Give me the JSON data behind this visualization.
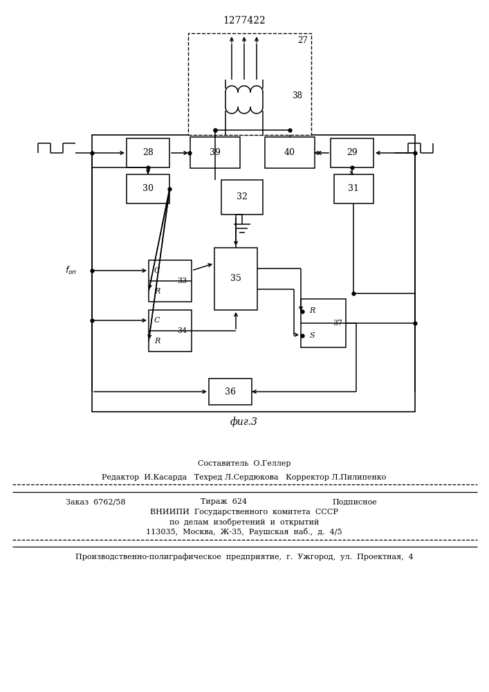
{
  "title": "1277422",
  "fig_label": "фиг.3",
  "bg_color": "#ffffff",
  "footer_lines": [
    "Составитель  О.Геллер",
    "Редактор  И.Касарда   Техред Л.Сердюкова   Корректор Л.Пилипенко",
    "Заказ  6762/58      Тираж  624         Подписное",
    "ВНИИПИ  Государственного  комитета  СССР",
    "по  делам  изобретений  и  открытий",
    "113035,  Москва,  Ж-35,  Раушская  наб.,  д.  4/5",
    "Производственно-полиграфическое  предприятие,  г.  Ужгород,  ул.  Проектная,  4"
  ]
}
